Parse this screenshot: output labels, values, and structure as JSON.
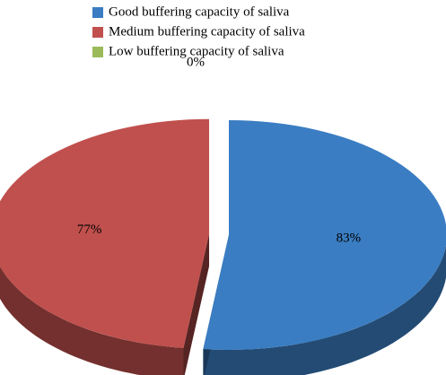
{
  "chart_data": {
    "type": "pie3d",
    "categories": [
      "Good buffering capacity of saliva",
      "Medium buffering capacity of saliva",
      "Low buffering capacity of saliva"
    ],
    "values": [
      83,
      77,
      0
    ],
    "value_labels": [
      "83%",
      "77%",
      "0%"
    ],
    "colors": [
      "#3a7dc2",
      "#c0504d",
      "#9bbb59"
    ],
    "legend": "top"
  }
}
